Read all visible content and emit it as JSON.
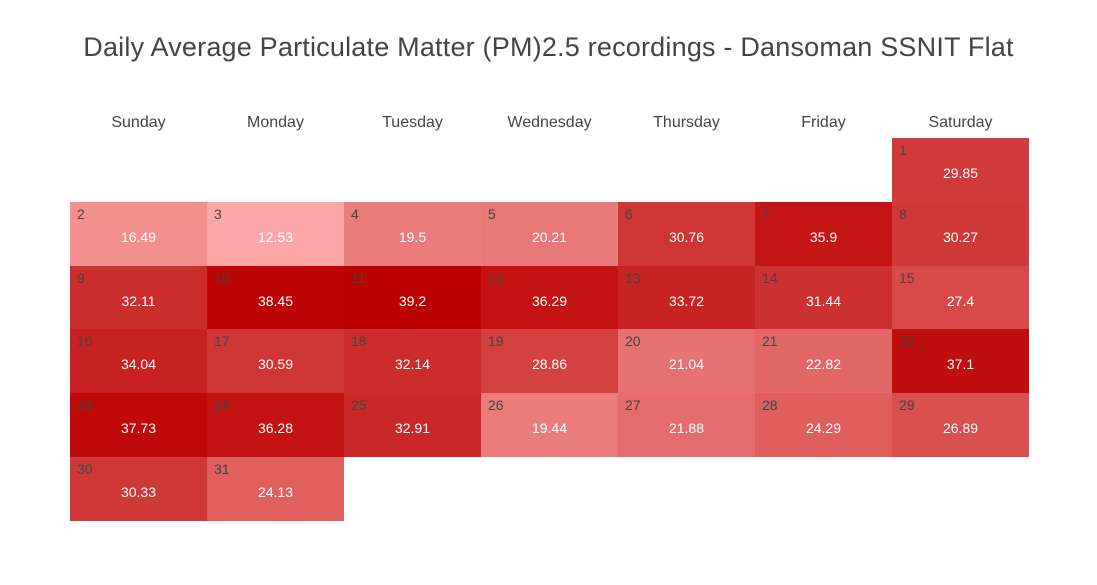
{
  "chart_data": {
    "type": "heatmap",
    "title": "Daily Average Particulate Matter (PM)2.5 recordings - Dansoman SSNIT Flat",
    "weekdays": [
      "Sunday",
      "Monday",
      "Tuesday",
      "Wednesday",
      "Thursday",
      "Friday",
      "Saturday"
    ],
    "first_day_weekday_index": 6,
    "days": [
      1,
      2,
      3,
      4,
      5,
      6,
      7,
      8,
      9,
      10,
      11,
      12,
      13,
      14,
      15,
      16,
      17,
      18,
      19,
      20,
      21,
      22,
      23,
      24,
      25,
      26,
      27,
      28,
      29,
      30,
      31
    ],
    "values": [
      29.85,
      16.49,
      12.53,
      19.5,
      20.21,
      30.76,
      35.9,
      30.27,
      32.11,
      38.45,
      39.2,
      36.29,
      33.72,
      31.44,
      27.4,
      34.04,
      30.59,
      32.14,
      28.86,
      21.04,
      22.82,
      37.1,
      37.73,
      36.28,
      32.91,
      19.44,
      21.88,
      24.29,
      26.89,
      30.33,
      24.13
    ],
    "value_range": [
      12.53,
      39.2
    ],
    "color_low": "#fca8a8",
    "color_high": "#bb0000"
  }
}
